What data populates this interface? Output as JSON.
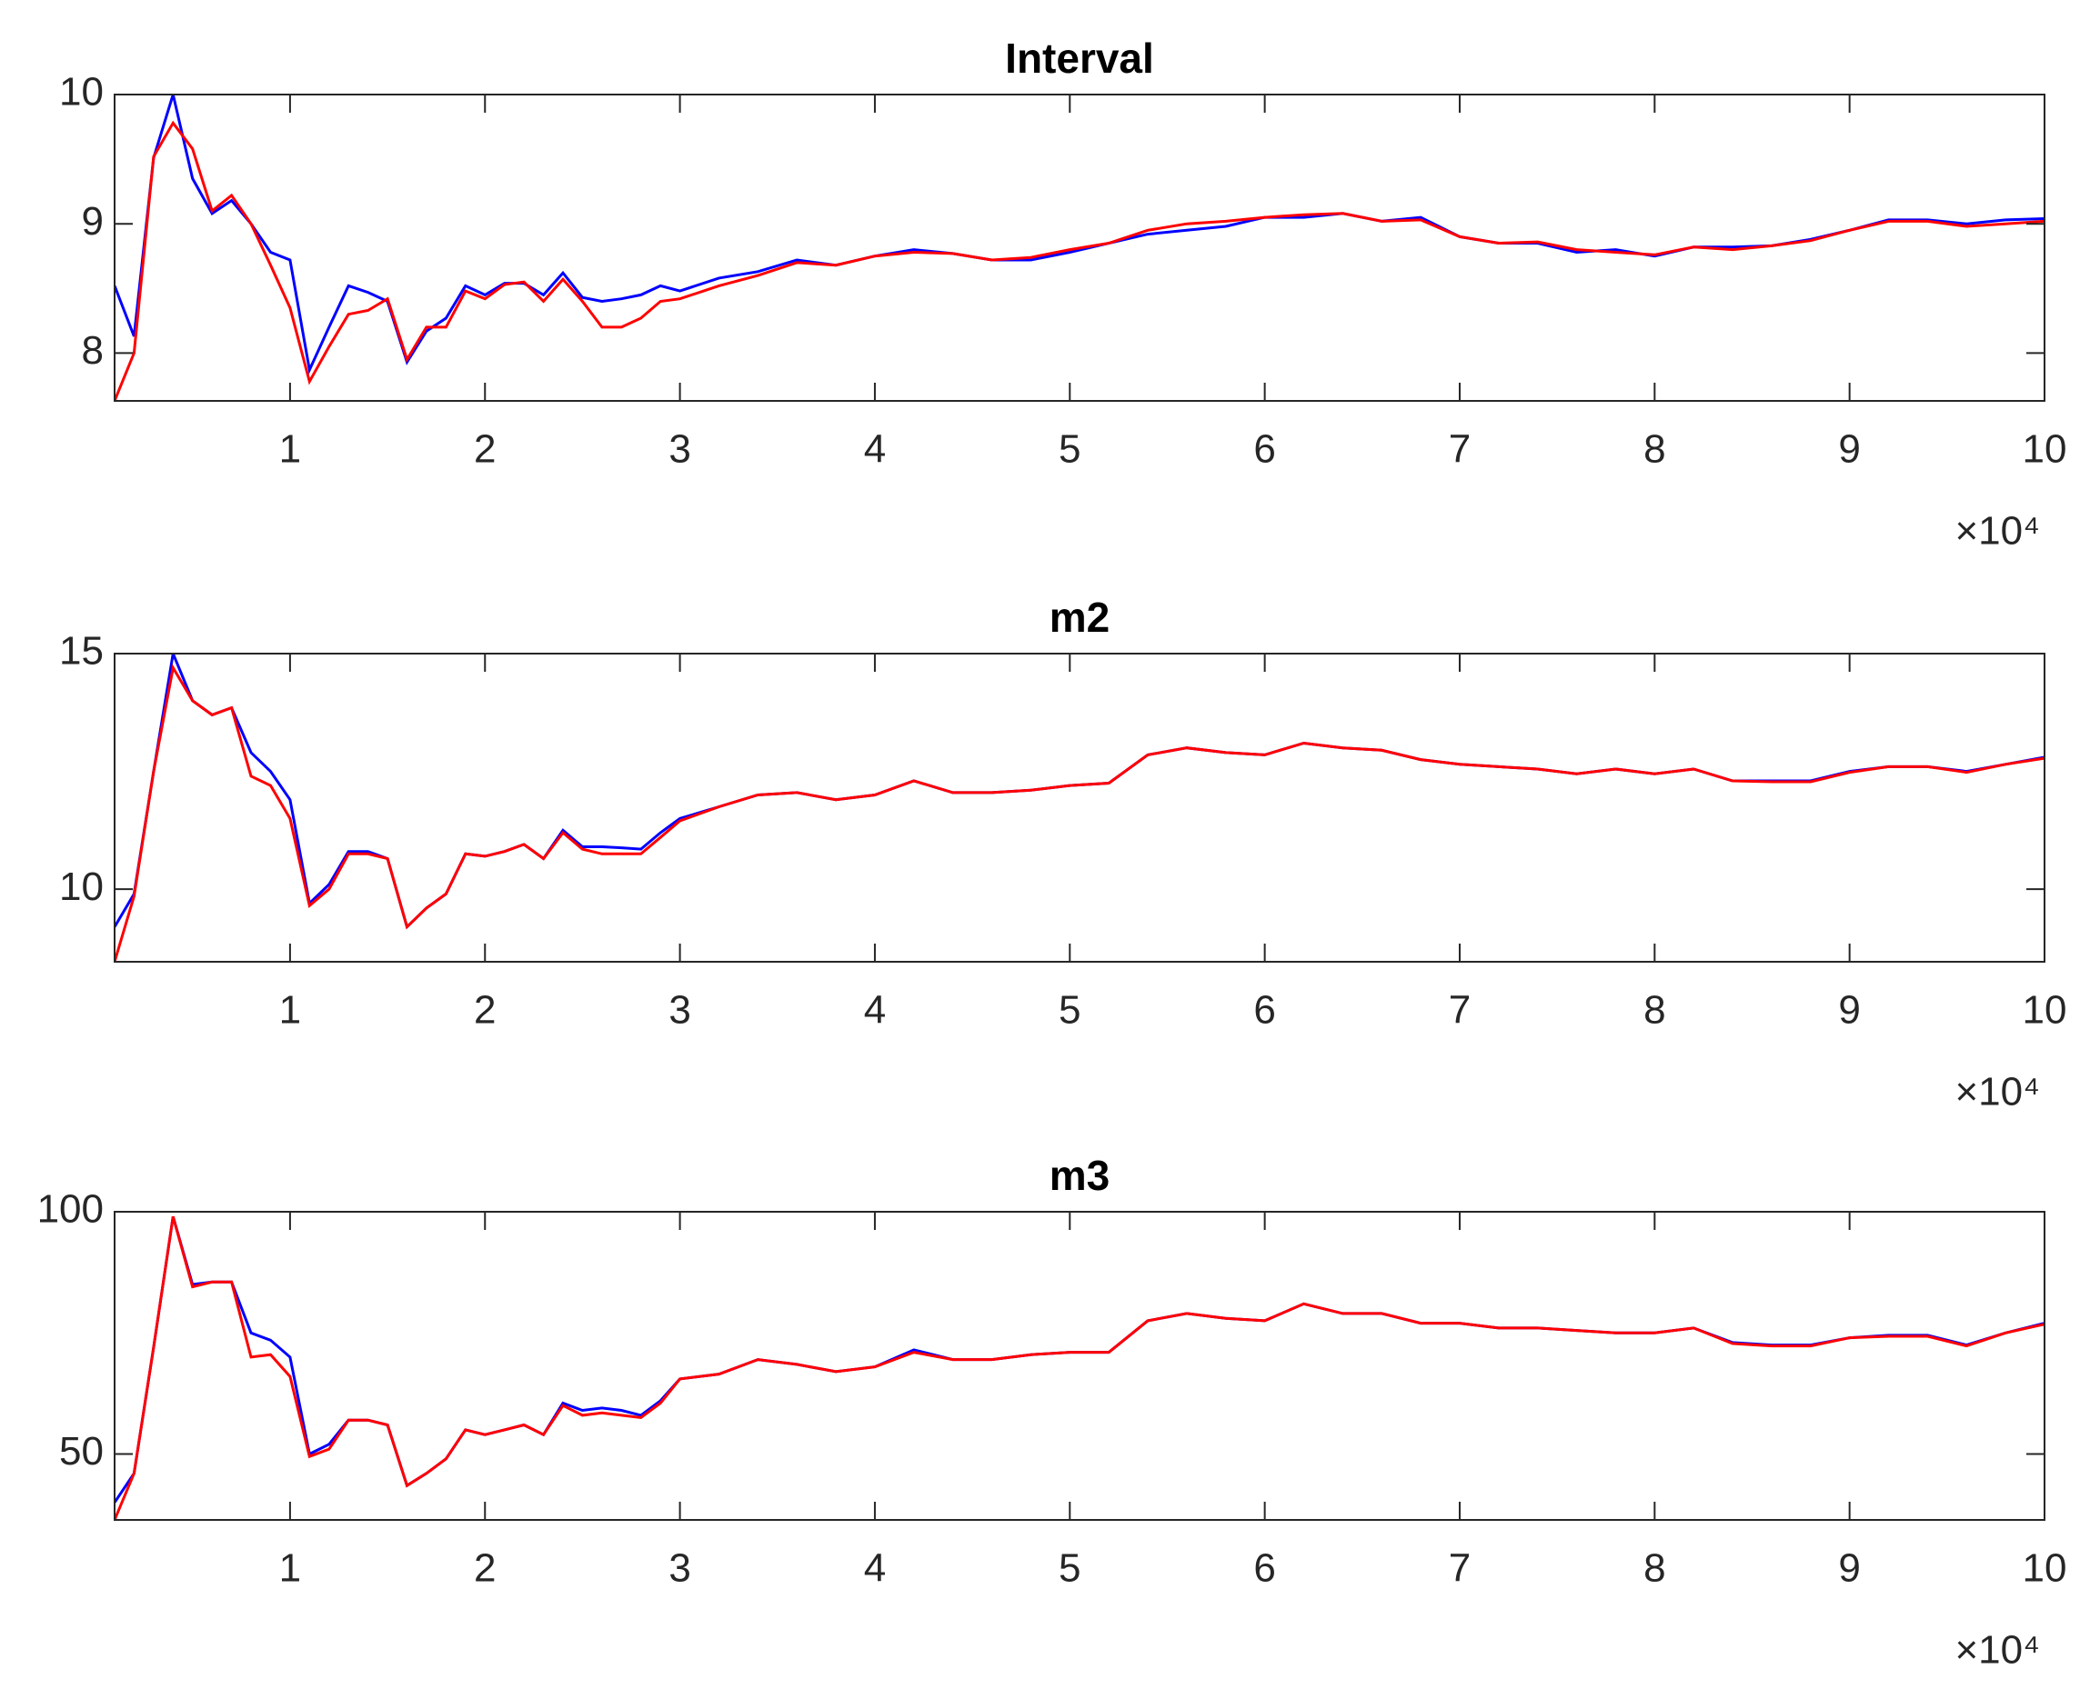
{
  "chart_data": [
    {
      "type": "line",
      "title": "Interval",
      "x": [
        1000,
        2000,
        3000,
        4000,
        5000,
        6000,
        7000,
        8000,
        9000,
        10000,
        11000,
        12000,
        13000,
        14000,
        15000,
        16000,
        17000,
        18000,
        19000,
        20000,
        21000,
        22000,
        23000,
        24000,
        25000,
        26000,
        27000,
        28000,
        29000,
        30000,
        32000,
        34000,
        36000,
        38000,
        40000,
        42000,
        44000,
        46000,
        48000,
        50000,
        52000,
        54000,
        56000,
        58000,
        60000,
        62000,
        64000,
        66000,
        68000,
        70000,
        72000,
        74000,
        76000,
        78000,
        80000,
        82000,
        84000,
        86000,
        88000,
        90000,
        92000,
        94000,
        96000,
        98000,
        100000
      ],
      "series": [
        {
          "color": "#0000ff",
          "values": [
            8.52,
            8.13,
            9.51,
            10.0,
            9.35,
            9.08,
            9.18,
            9.0,
            8.78,
            8.72,
            7.87,
            8.2,
            8.52,
            8.47,
            8.4,
            7.93,
            8.17,
            8.27,
            8.52,
            8.45,
            8.54,
            8.54,
            8.45,
            8.62,
            8.43,
            8.4,
            8.42,
            8.45,
            8.52,
            8.48,
            8.58,
            8.63,
            8.72,
            8.68,
            8.75,
            8.8,
            8.77,
            8.72,
            8.72,
            8.78,
            8.85,
            8.92,
            8.95,
            8.98,
            9.05,
            9.05,
            9.08,
            9.02,
            9.05,
            8.9,
            8.85,
            8.85,
            8.78,
            8.8,
            8.75,
            8.82,
            8.82,
            8.83,
            8.88,
            8.95,
            9.03,
            9.03,
            9.0,
            9.03,
            9.04
          ]
        },
        {
          "color": "#ff0000",
          "values": [
            7.63,
            8.0,
            9.52,
            9.78,
            9.58,
            9.1,
            9.22,
            9.0,
            8.68,
            8.35,
            7.78,
            8.05,
            8.3,
            8.33,
            8.42,
            7.95,
            8.2,
            8.2,
            8.48,
            8.42,
            8.53,
            8.55,
            8.4,
            8.57,
            8.4,
            8.2,
            8.2,
            8.27,
            8.4,
            8.42,
            8.52,
            8.6,
            8.7,
            8.68,
            8.75,
            8.78,
            8.77,
            8.72,
            8.74,
            8.8,
            8.85,
            8.95,
            9.0,
            9.02,
            9.05,
            9.07,
            9.08,
            9.02,
            9.03,
            8.9,
            8.85,
            8.86,
            8.8,
            8.78,
            8.76,
            8.82,
            8.8,
            8.83,
            8.87,
            8.95,
            9.02,
            9.02,
            8.98,
            9.0,
            9.02
          ]
        }
      ],
      "xlim": [
        1000,
        100000
      ],
      "xticks": [
        {
          "value": 10000,
          "label": "1"
        },
        {
          "value": 20000,
          "label": "2"
        },
        {
          "value": 30000,
          "label": "3"
        },
        {
          "value": 40000,
          "label": "4"
        },
        {
          "value": 50000,
          "label": "5"
        },
        {
          "value": 60000,
          "label": "6"
        },
        {
          "value": 70000,
          "label": "7"
        },
        {
          "value": 80000,
          "label": "8"
        },
        {
          "value": 90000,
          "label": "9"
        },
        {
          "value": 100000,
          "label": "10"
        }
      ],
      "x_scale_label": "×10⁴",
      "ylim": [
        7.63,
        10.0
      ],
      "yticks": [
        8,
        9,
        10
      ]
    },
    {
      "type": "line",
      "title": "m2",
      "x": [
        1000,
        2000,
        3000,
        4000,
        5000,
        6000,
        7000,
        8000,
        9000,
        10000,
        11000,
        12000,
        13000,
        14000,
        15000,
        16000,
        17000,
        18000,
        19000,
        20000,
        21000,
        22000,
        23000,
        24000,
        25000,
        26000,
        27000,
        28000,
        29000,
        30000,
        32000,
        34000,
        36000,
        38000,
        40000,
        42000,
        44000,
        46000,
        48000,
        50000,
        52000,
        54000,
        56000,
        58000,
        60000,
        62000,
        64000,
        66000,
        68000,
        70000,
        72000,
        74000,
        76000,
        78000,
        80000,
        82000,
        84000,
        86000,
        88000,
        90000,
        92000,
        94000,
        96000,
        98000,
        100000
      ],
      "series": [
        {
          "color": "#0000ff",
          "values": [
            9.2,
            9.9,
            12.5,
            15.0,
            14.0,
            13.7,
            13.85,
            12.9,
            12.5,
            11.9,
            9.7,
            10.1,
            10.8,
            10.8,
            10.65,
            9.2,
            9.6,
            9.9,
            10.75,
            10.7,
            10.8,
            10.95,
            10.65,
            11.25,
            10.9,
            10.9,
            10.88,
            10.85,
            11.2,
            11.5,
            11.75,
            12.0,
            12.05,
            11.9,
            12.0,
            12.3,
            12.05,
            12.05,
            12.1,
            12.2,
            12.25,
            12.85,
            13.0,
            12.9,
            12.85,
            13.1,
            13.0,
            12.95,
            12.75,
            12.65,
            12.6,
            12.55,
            12.45,
            12.55,
            12.45,
            12.55,
            12.3,
            12.3,
            12.3,
            12.5,
            12.6,
            12.6,
            12.5,
            12.65,
            12.8
          ]
        },
        {
          "color": "#ff0000",
          "values": [
            8.46,
            9.85,
            12.5,
            14.7,
            14.0,
            13.7,
            13.85,
            12.4,
            12.2,
            11.5,
            9.65,
            10.0,
            10.75,
            10.75,
            10.65,
            9.2,
            9.6,
            9.9,
            10.75,
            10.7,
            10.8,
            10.95,
            10.65,
            11.2,
            10.85,
            10.75,
            10.75,
            10.75,
            11.1,
            11.45,
            11.75,
            12.0,
            12.05,
            11.9,
            12.0,
            12.3,
            12.05,
            12.05,
            12.1,
            12.2,
            12.25,
            12.85,
            13.0,
            12.9,
            12.85,
            13.1,
            13.0,
            12.95,
            12.75,
            12.65,
            12.6,
            12.55,
            12.45,
            12.55,
            12.45,
            12.55,
            12.3,
            12.28,
            12.28,
            12.48,
            12.6,
            12.6,
            12.48,
            12.65,
            12.78
          ]
        }
      ],
      "xlim": [
        1000,
        100000
      ],
      "xticks": [
        {
          "value": 10000,
          "label": "1"
        },
        {
          "value": 20000,
          "label": "2"
        },
        {
          "value": 30000,
          "label": "3"
        },
        {
          "value": 40000,
          "label": "4"
        },
        {
          "value": 50000,
          "label": "5"
        },
        {
          "value": 60000,
          "label": "6"
        },
        {
          "value": 70000,
          "label": "7"
        },
        {
          "value": 80000,
          "label": "8"
        },
        {
          "value": 90000,
          "label": "9"
        },
        {
          "value": 100000,
          "label": "10"
        }
      ],
      "x_scale_label": "×10⁴",
      "ylim": [
        8.46,
        15.0
      ],
      "yticks": [
        10,
        15
      ]
    },
    {
      "type": "line",
      "title": "m3",
      "x": [
        1000,
        2000,
        3000,
        4000,
        5000,
        6000,
        7000,
        8000,
        9000,
        10000,
        11000,
        12000,
        13000,
        14000,
        15000,
        16000,
        17000,
        18000,
        19000,
        20000,
        21000,
        22000,
        23000,
        24000,
        25000,
        26000,
        27000,
        28000,
        29000,
        30000,
        32000,
        34000,
        36000,
        38000,
        40000,
        42000,
        44000,
        46000,
        48000,
        50000,
        52000,
        54000,
        56000,
        58000,
        60000,
        62000,
        64000,
        66000,
        68000,
        70000,
        72000,
        74000,
        76000,
        78000,
        80000,
        82000,
        84000,
        86000,
        88000,
        90000,
        92000,
        94000,
        96000,
        98000,
        100000
      ],
      "series": [
        {
          "color": "#0000ff",
          "values": [
            40,
            46,
            72,
            99,
            85,
            85.5,
            85.5,
            75,
            73.5,
            70,
            50,
            52,
            57,
            57,
            56,
            43.5,
            46,
            49,
            55,
            54,
            55,
            56,
            54,
            60.5,
            59,
            59.5,
            59,
            58,
            61,
            65.5,
            66.5,
            69.5,
            68.5,
            67,
            68,
            71.5,
            69.5,
            69.5,
            70.5,
            71,
            71,
            77.5,
            79,
            78,
            77.5,
            81,
            79,
            79,
            77,
            77,
            76,
            76,
            75.5,
            75,
            75,
            76,
            73,
            72.5,
            72.5,
            74,
            74.5,
            74.5,
            72.5,
            75,
            77
          ]
        },
        {
          "color": "#ff0000",
          "values": [
            36.4,
            46,
            72,
            99,
            84.5,
            85.5,
            85.5,
            70,
            70.5,
            66,
            49.5,
            51,
            57,
            57,
            56,
            43.5,
            46,
            49,
            55,
            54,
            55,
            56,
            54,
            60,
            58,
            58.5,
            58,
            57.5,
            60.5,
            65.5,
            66.5,
            69.5,
            68.5,
            67,
            68,
            71,
            69.5,
            69.5,
            70.5,
            71,
            71,
            77.5,
            79,
            78,
            77.5,
            81,
            79,
            79,
            77,
            77,
            76,
            76,
            75.5,
            75,
            75,
            76,
            72.8,
            72.3,
            72.3,
            74,
            74.3,
            74.3,
            72.3,
            75,
            76.8
          ]
        }
      ],
      "xlim": [
        1000,
        100000
      ],
      "xticks": [
        {
          "value": 10000,
          "label": "1"
        },
        {
          "value": 20000,
          "label": "2"
        },
        {
          "value": 30000,
          "label": "3"
        },
        {
          "value": 40000,
          "label": "4"
        },
        {
          "value": 50000,
          "label": "5"
        },
        {
          "value": 60000,
          "label": "6"
        },
        {
          "value": 70000,
          "label": "7"
        },
        {
          "value": 80000,
          "label": "8"
        },
        {
          "value": 90000,
          "label": "9"
        },
        {
          "value": 100000,
          "label": "10"
        }
      ],
      "x_scale_label": "×10⁴",
      "ylim": [
        36.4,
        100
      ],
      "yticks": [
        50,
        100
      ]
    }
  ]
}
